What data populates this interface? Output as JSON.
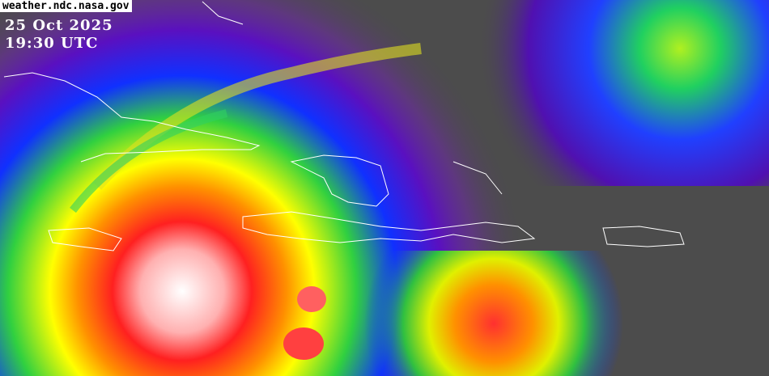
{
  "image": {
    "source_label": "weather.ndc.nasa.gov",
    "date": "25 Oct 2025",
    "time": "19:30 UTC",
    "palette": [
      "#ffffff",
      "#ff2020",
      "#ff9000",
      "#ffff00",
      "#30e030",
      "#0030ff",
      "#6000c0",
      "#5a5a5a"
    ]
  }
}
